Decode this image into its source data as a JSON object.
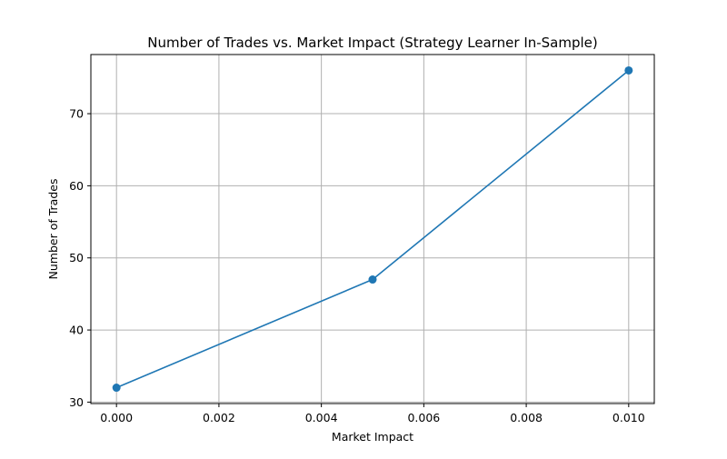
{
  "chart_data": {
    "type": "line",
    "title": "Number of Trades vs. Market Impact (Strategy Learner In-Sample)",
    "xlabel": "Market Impact",
    "ylabel": "Number of Trades",
    "x": [
      0.0,
      0.005,
      0.01
    ],
    "series": [
      {
        "values": [
          32,
          47,
          76
        ],
        "color": "#1f77b4",
        "marker": "circle"
      }
    ],
    "xlim": [
      -0.0005,
      0.0105
    ],
    "ylim": [
      29.8,
      78.2
    ],
    "xticks": [
      0.0,
      0.002,
      0.004,
      0.006,
      0.008,
      0.01
    ],
    "xtick_labels": [
      "0.000",
      "0.002",
      "0.004",
      "0.006",
      "0.008",
      "0.010"
    ],
    "yticks": [
      30,
      40,
      50,
      60,
      70
    ],
    "ytick_labels": [
      "30",
      "40",
      "50",
      "60",
      "70"
    ],
    "grid": true,
    "legend": false
  }
}
